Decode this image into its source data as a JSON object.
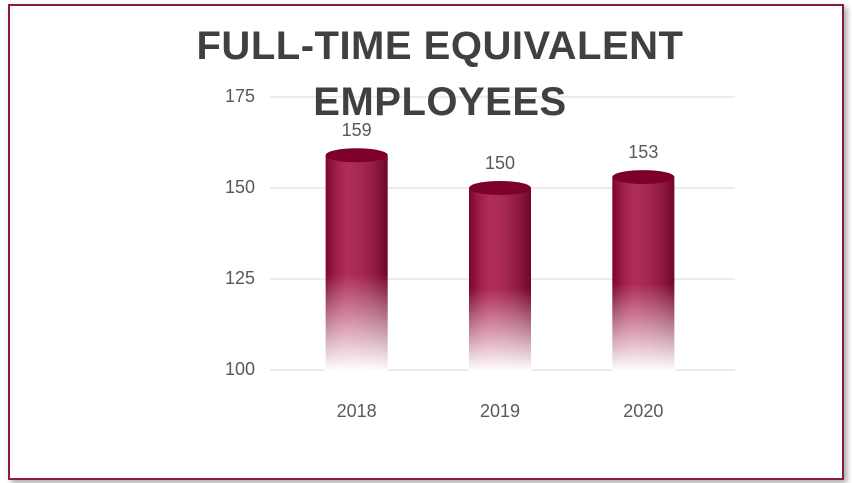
{
  "chart_data": {
    "type": "bar",
    "title": "FULL-TIME EQUIVALENT EMPLOYEES",
    "categories": [
      "2018",
      "2019",
      "2020"
    ],
    "values": [
      159,
      150,
      153
    ],
    "color": "#a3063c",
    "ylim": [
      100,
      175
    ],
    "yticks": [
      100,
      125,
      150,
      175
    ],
    "grid": true
  }
}
